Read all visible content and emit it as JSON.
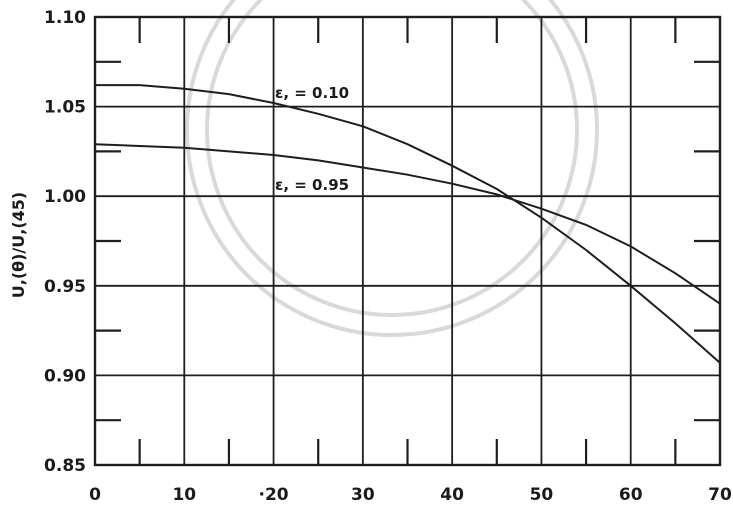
{
  "chart_data": {
    "type": "line",
    "xlabel": "",
    "ylabel": "U,(θ)/U,(45)",
    "xlim": [
      0,
      70
    ],
    "ylim": [
      0.85,
      1.1
    ],
    "x_ticks": [
      "0",
      "10",
      "·20",
      "30",
      "40",
      "50",
      "60",
      "70"
    ],
    "y_ticks": [
      "0.85",
      "0.90",
      "0.95",
      "1.00",
      "1.05",
      "1.10"
    ],
    "grid": true,
    "series": [
      {
        "name": "εp = 0.10",
        "label": "ε, = 0.10",
        "x": [
          0,
          5,
          10,
          15,
          20,
          25,
          30,
          35,
          40,
          45,
          50,
          55,
          60,
          65,
          70
        ],
        "y": [
          1.062,
          1.062,
          1.06,
          1.057,
          1.052,
          1.046,
          1.039,
          1.029,
          1.017,
          1.004,
          0.988,
          0.97,
          0.95,
          0.929,
          0.907
        ]
      },
      {
        "name": "εp = 0.95",
        "label": "ε, = 0.95",
        "x": [
          0,
          5,
          10,
          15,
          20,
          25,
          30,
          35,
          40,
          45,
          50,
          55,
          60,
          65,
          70
        ],
        "y": [
          1.029,
          1.028,
          1.027,
          1.025,
          1.023,
          1.02,
          1.016,
          1.012,
          1.007,
          1.001,
          0.993,
          0.984,
          0.972,
          0.957,
          0.94
        ]
      }
    ]
  }
}
